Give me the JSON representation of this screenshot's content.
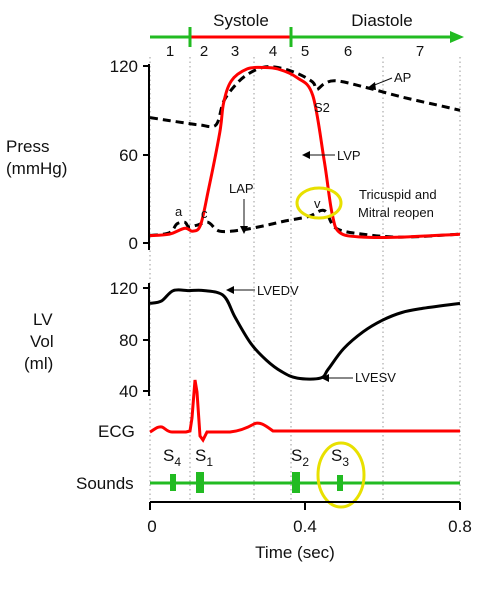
{
  "header": {
    "systole": "Systole",
    "diastole": "Diastole",
    "phases": [
      "1",
      "2",
      "3",
      "4",
      "5",
      "6",
      "7"
    ]
  },
  "pressure_panel": {
    "ylabel": [
      "Press",
      "(mmHg)"
    ],
    "ticks": [
      "120",
      "60",
      "0"
    ],
    "labels": {
      "ap": "AP",
      "s2": "S2",
      "lvp": "LVP",
      "lap": "LAP",
      "a": "a",
      "c": "c",
      "v": "v",
      "reopen": [
        "Tricuspid and",
        "Mitral reopen"
      ]
    }
  },
  "volume_panel": {
    "ylabel": [
      "LV",
      "Vol",
      "(ml)"
    ],
    "ticks": [
      "120",
      "80",
      "40"
    ],
    "labels": {
      "lvedv": "LVEDV",
      "lvesv": "LVESV"
    }
  },
  "ecg": {
    "label": "ECG"
  },
  "sounds": {
    "label": "Sounds",
    "s4": [
      "S",
      "4"
    ],
    "s1": [
      "S",
      "1"
    ],
    "s2": [
      "S",
      "2"
    ],
    "s3": [
      "S",
      "3"
    ]
  },
  "x_axis": {
    "ticks": [
      "0",
      "0.4",
      "0.8"
    ],
    "xlabel": "Time (sec)"
  },
  "colors": {
    "red": "#ff0000",
    "green": "#22bb22",
    "yellow": "#e8e000",
    "black": "#000000"
  },
  "chart_data": {
    "type": "line",
    "x_unit": "sec",
    "xlim": [
      0,
      0.8
    ],
    "phase_boundaries_sec": [
      0.03,
      0.12,
      0.19,
      0.31,
      0.44,
      0.58
    ],
    "systole_sec": [
      0.12,
      0.43
    ],
    "diastole_sec": [
      0.43,
      0.8
    ],
    "pressure": {
      "ylim": [
        0,
        120
      ],
      "series": [
        {
          "name": "AP",
          "x": [
            0,
            0.05,
            0.1,
            0.13,
            0.17,
            0.19,
            0.22,
            0.25,
            0.29,
            0.33,
            0.38,
            0.42,
            0.43,
            0.45,
            0.48,
            0.55,
            0.65,
            0.75,
            0.8
          ],
          "y": [
            85,
            83,
            81,
            80,
            80,
            96,
            107,
            114,
            119,
            119,
            115,
            109,
            104,
            108,
            110,
            106,
            99,
            93,
            90
          ]
        },
        {
          "name": "LVP",
          "x": [
            0,
            0.05,
            0.09,
            0.11,
            0.13,
            0.15,
            0.18,
            0.19,
            0.21,
            0.25,
            0.29,
            0.33,
            0.38,
            0.42,
            0.45,
            0.47,
            0.49,
            0.55,
            0.65,
            0.8
          ],
          "y": [
            5,
            6,
            10,
            8,
            12,
            35,
            75,
            95,
            110,
            118,
            119,
            118,
            112,
            100,
            55,
            20,
            7,
            4,
            4,
            6
          ]
        },
        {
          "name": "LAP",
          "x": [
            0,
            0.05,
            0.07,
            0.09,
            0.1,
            0.12,
            0.15,
            0.18,
            0.24,
            0.3,
            0.35,
            0.41,
            0.45,
            0.48,
            0.55,
            0.65,
            0.8
          ],
          "y": [
            5,
            7,
            13,
            14,
            11,
            12,
            14,
            8,
            9,
            12,
            15,
            18,
            22,
            10,
            6,
            4,
            6
          ]
        }
      ]
    },
    "volume": {
      "ylim": [
        40,
        120
      ],
      "series": [
        {
          "name": "LV Vol",
          "x": [
            0,
            0.03,
            0.06,
            0.1,
            0.14,
            0.19,
            0.22,
            0.26,
            0.3,
            0.34,
            0.38,
            0.44,
            0.46,
            0.5,
            0.55,
            0.6,
            0.65,
            0.7,
            0.8
          ],
          "y": [
            108,
            110,
            118,
            118,
            118,
            114,
            97,
            77,
            64,
            55,
            50,
            50,
            57,
            73,
            86,
            95,
            101,
            104,
            108
          ]
        }
      ]
    },
    "sounds_sec": {
      "S4": 0.07,
      "S1": 0.15,
      "S2": 0.44,
      "S3": 0.57
    }
  }
}
